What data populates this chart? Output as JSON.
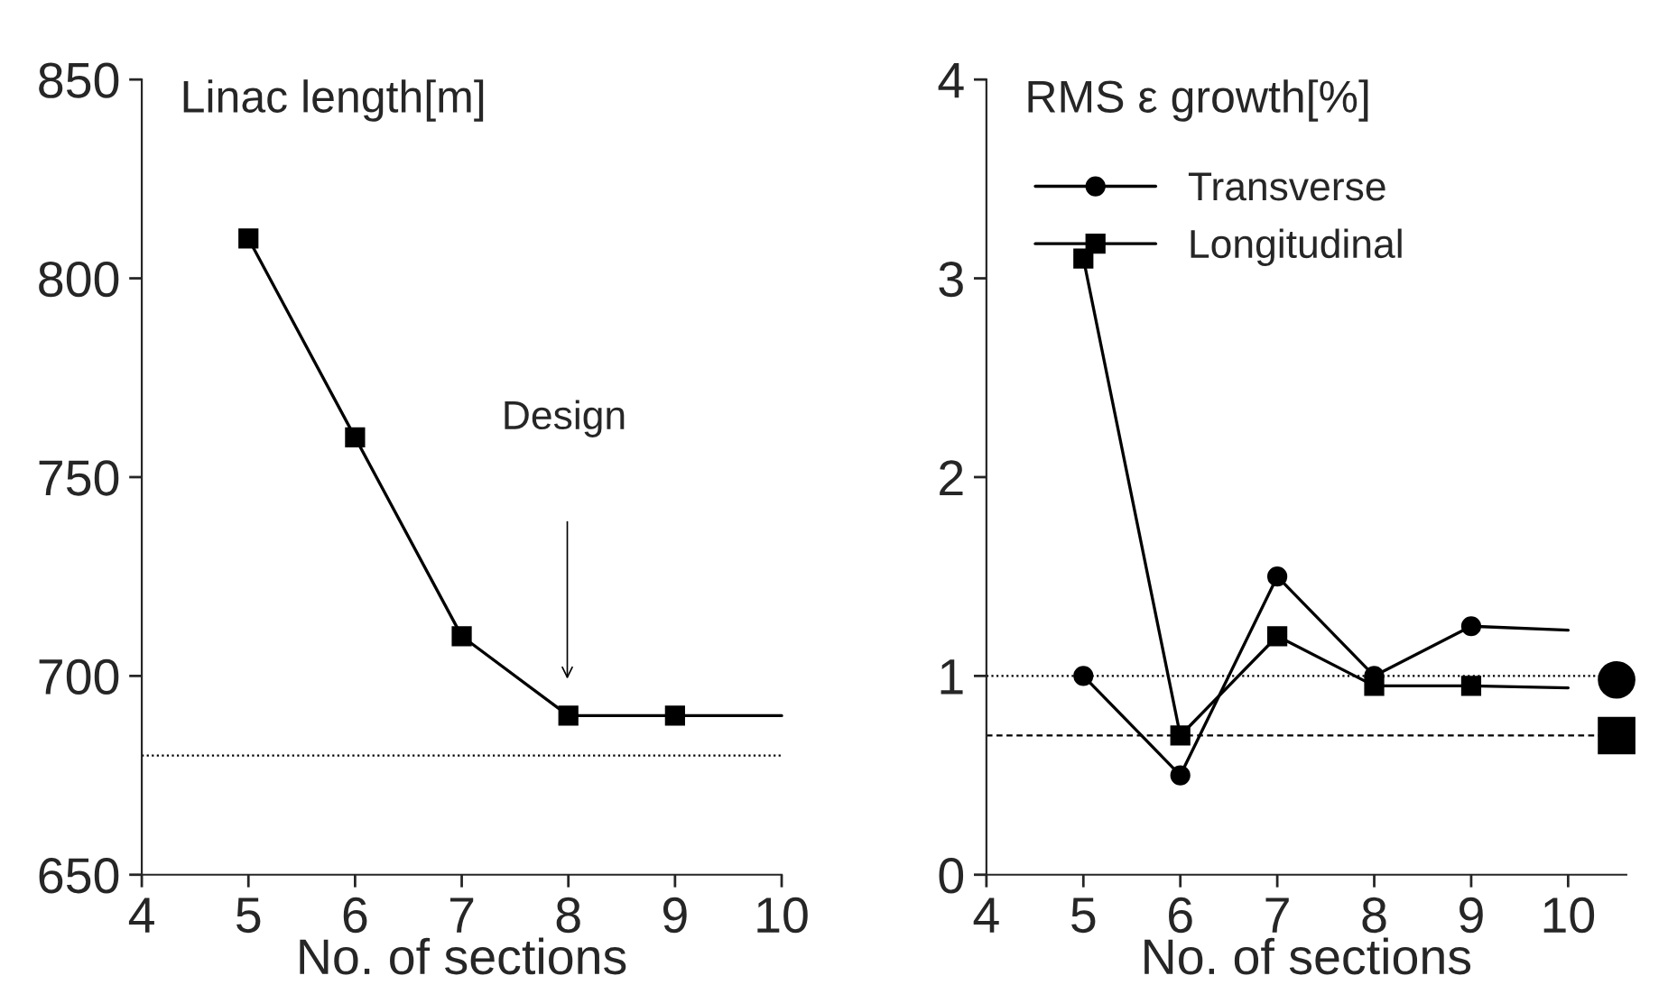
{
  "chart_data": [
    {
      "type": "line",
      "title": "Linac length[m]",
      "xlabel": "No. of sections",
      "xlim": [
        4,
        10
      ],
      "xticks": [
        4,
        5,
        6,
        7,
        8,
        9,
        10
      ],
      "ylim": [
        650,
        850
      ],
      "yticks": [
        650,
        700,
        750,
        800,
        850
      ],
      "grid": false,
      "legend": false,
      "series": [
        {
          "color": "#000000",
          "marker": "square",
          "x": [
            5,
            6,
            7,
            8,
            9
          ],
          "values": [
            810,
            760,
            710,
            690,
            690
          ]
        },
        {
          "color": "#000000",
          "marker": "none",
          "x": [
            9,
            10
          ],
          "values": [
            690,
            690
          ]
        }
      ],
      "ref_lines": [
        {
          "axis": "y",
          "value": 680,
          "line_style": "dotted",
          "color": "#000000"
        }
      ],
      "annotations": [
        "Design"
      ]
    },
    {
      "type": "line",
      "title": "RMS ε growth[%]",
      "xlabel": "No. of sections",
      "xlim": [
        4,
        10.6
      ],
      "xticks": [
        4,
        5,
        6,
        7,
        8,
        9,
        10
      ],
      "ylim": [
        0,
        4
      ],
      "yticks": [
        0,
        1,
        2,
        3,
        4
      ],
      "grid": false,
      "legend": "top left",
      "series": [
        {
          "name": "Transverse",
          "color": "#000000",
          "marker": "circle",
          "x": [
            5,
            6,
            7,
            8,
            9
          ],
          "values": [
            1.0,
            0.5,
            1.5,
            1.0,
            1.25
          ]
        },
        {
          "name": "Longitudinal",
          "color": "#000000",
          "marker": "square",
          "x": [
            5,
            6,
            7,
            8,
            9
          ],
          "values": [
            3.1,
            0.7,
            1.2,
            0.95,
            0.95
          ]
        },
        {
          "color": "#000000",
          "marker": "none",
          "x": [
            9,
            10
          ],
          "values": [
            1.25,
            1.23
          ]
        },
        {
          "color": "#000000",
          "marker": "none",
          "x": [
            9,
            10
          ],
          "values": [
            0.95,
            0.94
          ]
        },
        {
          "type": "scatter",
          "color": "#000000",
          "marker": "circle",
          "x": [
            10.5
          ],
          "values": [
            0.98
          ]
        },
        {
          "type": "scatter",
          "color": "#000000",
          "marker": "square",
          "x": [
            10.5
          ],
          "values": [
            0.7
          ]
        }
      ],
      "ref_lines": [
        {
          "axis": "y",
          "value": 1.0,
          "line_style": "dotted",
          "color": "#000000"
        },
        {
          "axis": "y",
          "value": 0.7,
          "line_style": "dashed",
          "color": "#000000"
        }
      ]
    }
  ]
}
